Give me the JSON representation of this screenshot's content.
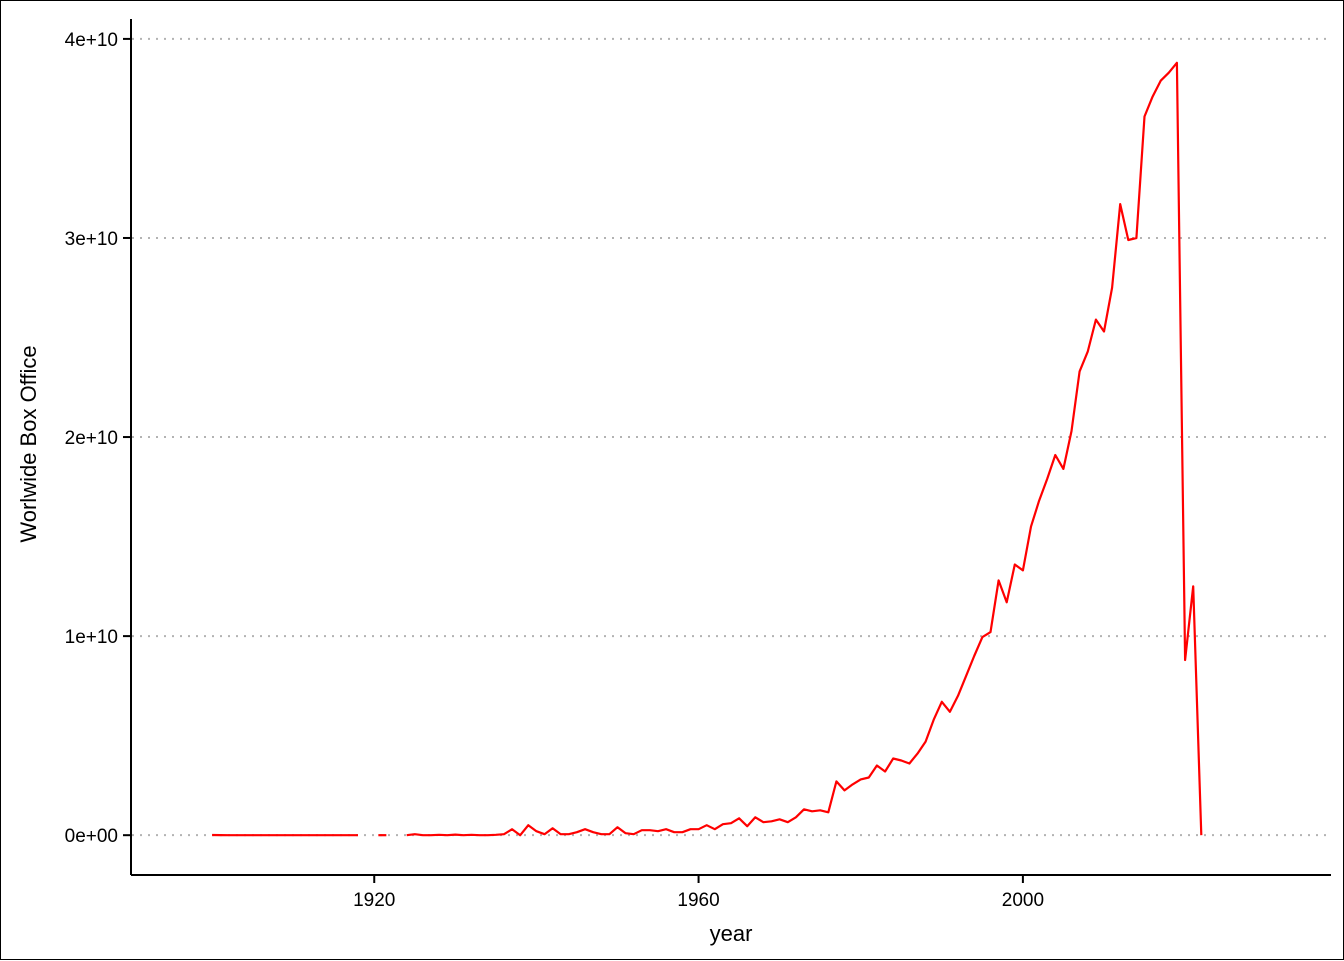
{
  "chart_data": {
    "type": "line",
    "title": "",
    "xlabel": "year",
    "ylabel": "Worlwide Box Office",
    "xlim": [
      1890,
      2038
    ],
    "ylim": [
      -2000000000,
      41000000000
    ],
    "x_ticks": [
      1920,
      1960,
      2000
    ],
    "x_tick_labels": [
      "1920",
      "1960",
      "2000"
    ],
    "y_ticks": [
      0,
      10000000000,
      20000000000,
      30000000000,
      40000000000
    ],
    "y_tick_labels": [
      "0e+00",
      "1e+10",
      "2e+10",
      "3e+10",
      "4e+10"
    ],
    "grid": "horizontal-dotted",
    "legend": "none",
    "line_color": "#ff0000",
    "grid_color": "#b3b3b3",
    "series": [
      {
        "x": [
          1900,
          1901,
          1902,
          1903,
          1904,
          1905,
          1906,
          1907,
          1908,
          1909,
          1910,
          1911,
          1912,
          1913,
          1914,
          1915,
          1916,
          1917,
          1918,
          1919,
          1920,
          1921,
          1922,
          1923,
          1924,
          1925,
          1926,
          1927,
          1928,
          1929,
          1930,
          1931,
          1932,
          1933,
          1934,
          1935,
          1936,
          1937,
          1938,
          1939,
          1940,
          1941,
          1942,
          1943,
          1944,
          1945,
          1946,
          1947,
          1948,
          1949,
          1950,
          1951,
          1952,
          1953,
          1954,
          1955,
          1956,
          1957,
          1958,
          1959,
          1960,
          1961,
          1962,
          1963,
          1964,
          1965,
          1966,
          1967,
          1968,
          1969,
          1970,
          1971,
          1972,
          1973,
          1974,
          1975,
          1976,
          1977,
          1978,
          1979,
          1980,
          1981,
          1982,
          1983,
          1984,
          1985,
          1986,
          1987,
          1988,
          1989,
          1990,
          1991,
          1992,
          1993,
          1994,
          1995,
          1996,
          1997,
          1998,
          1999,
          2000,
          2001,
          2002,
          2003,
          2004,
          2005,
          2006,
          2007,
          2008,
          2009,
          2010,
          2011,
          2012,
          2013,
          2014,
          2015,
          2016,
          2017,
          2018,
          2019,
          2020,
          2021,
          2022
        ],
        "y": [
          10000000,
          5000000,
          0,
          0,
          0,
          0,
          0,
          0,
          0,
          0,
          0,
          0,
          0,
          0,
          0,
          0,
          0,
          0,
          0,
          null,
          null,
          0,
          null,
          null,
          0,
          50000000,
          0,
          0,
          20000000,
          0,
          30000000,
          0,
          20000000,
          0,
          0,
          20000000,
          50000000,
          300000000,
          0,
          500000000,
          200000000,
          50000000,
          350000000,
          50000000,
          50000000,
          150000000,
          300000000,
          150000000,
          50000000,
          50000000,
          400000000,
          100000000,
          50000000,
          250000000,
          250000000,
          200000000,
          300000000,
          150000000,
          150000000,
          300000000,
          300000000,
          500000000,
          300000000,
          550000000,
          600000000,
          850000000,
          450000000,
          900000000,
          650000000,
          700000000,
          800000000,
          650000000,
          900000000,
          1300000000,
          1200000000,
          1250000000,
          1150000000,
          2700000000,
          2250000000,
          2550000000,
          2800000000,
          2900000000,
          3500000000,
          3200000000,
          3850000000,
          3750000000,
          3600000000,
          4100000000,
          4700000000,
          5800000000,
          6700000000,
          6200000000,
          7000000000,
          8000000000,
          9000000000,
          9950000000,
          10200000000,
          12800000000,
          11700000000,
          13600000000,
          13300000000,
          15500000000,
          16800000000,
          17900000000,
          19100000000,
          18400000000,
          20300000000,
          23300000000,
          24300000000,
          25900000000,
          25300000000,
          27500000000,
          31700000000,
          29900000000,
          30000000000,
          36100000000,
          37100000000,
          37900000000,
          38300000000,
          38800000000,
          8800000000,
          12500000000,
          0
        ]
      }
    ]
  }
}
